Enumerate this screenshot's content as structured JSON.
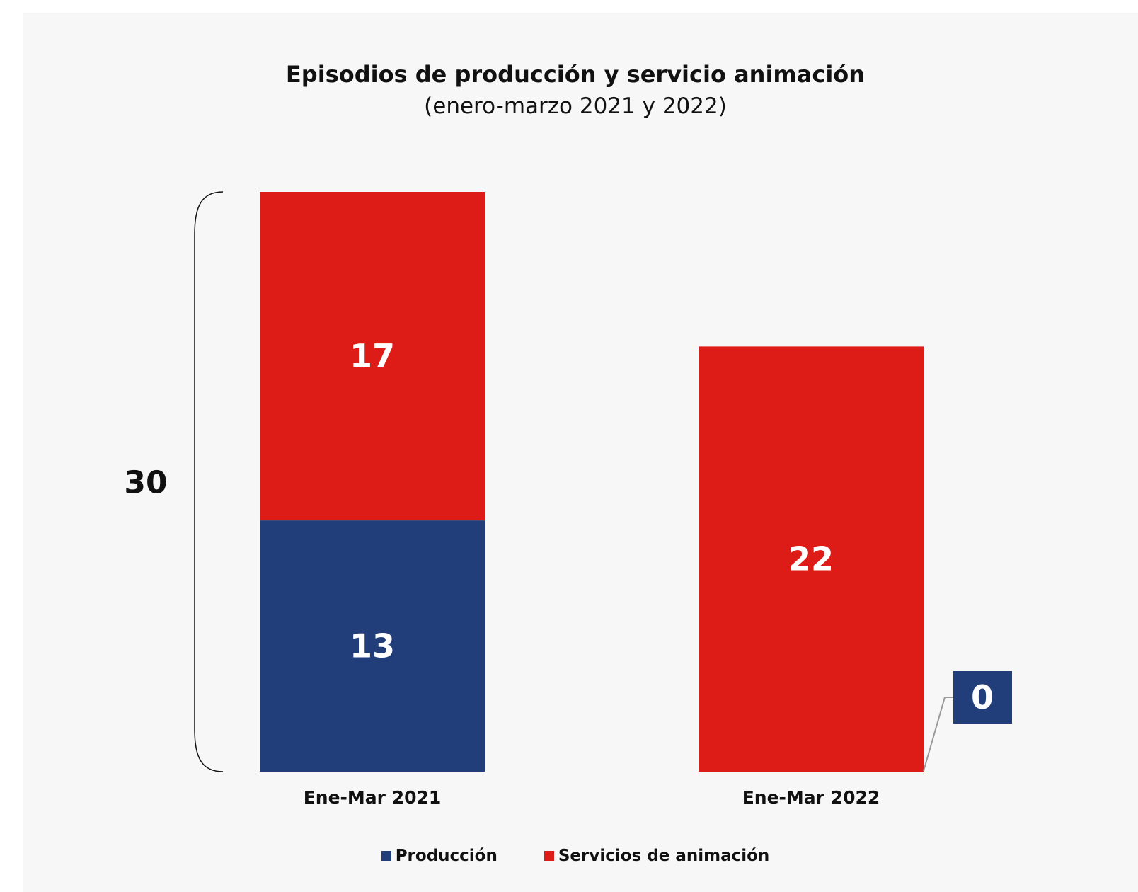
{
  "chart_data": {
    "type": "bar",
    "stacked": true,
    "title": "Episodios de producción y servicio animación",
    "subtitle": "(enero-marzo 2021 y 2022)",
    "categories": [
      "Ene-Mar 2021",
      "Ene-Mar 2022"
    ],
    "series": [
      {
        "name": "Producción",
        "color": "#213d7a",
        "values": [
          13,
          0
        ]
      },
      {
        "name": "Servicios de animación",
        "color": "#de1c17",
        "values": [
          17,
          22
        ]
      }
    ],
    "data_labels": {
      "Ene-Mar 2021": {
        "Producción": "13",
        "Servicios de animación": "17"
      },
      "Ene-Mar 2022": {
        "Producción": "0",
        "Servicios de animación": "22"
      }
    },
    "annotations": {
      "total_2021": "30"
    },
    "legend_position": "bottom",
    "grid": false
  }
}
